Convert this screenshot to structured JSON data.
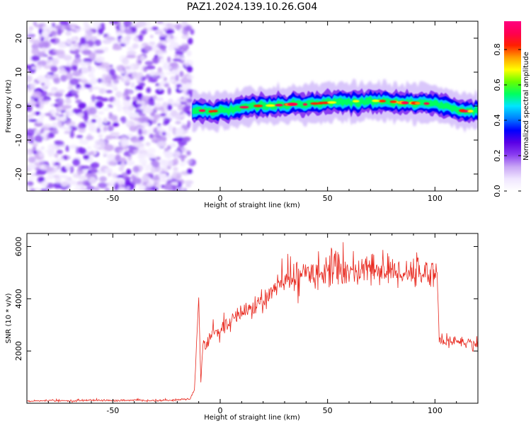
{
  "figure": {
    "title": "PAZ1.2024.139.10.26.G04"
  },
  "chart_data": [
    {
      "type": "heatmap",
      "title": "PAZ1.2024.139.10.26.G04",
      "xlabel": "Height of straight line (km)",
      "ylabel": "Frequency (Hz)",
      "xlim": [
        -90,
        120
      ],
      "ylim": [
        -25,
        25
      ],
      "xticks": [
        -50,
        0,
        50,
        100
      ],
      "xtick_labels": [
        "-50",
        "0",
        "50",
        "100"
      ],
      "yticks": [
        -20,
        -10,
        0,
        10,
        20
      ],
      "ytick_labels": [
        "-20",
        "-10",
        "0",
        "10",
        "20"
      ],
      "colorbar": {
        "label": "Normalized spectral amplitude",
        "range": [
          0,
          0.96
        ],
        "ticks": [
          0.0,
          0.2,
          0.4,
          0.6,
          0.8
        ],
        "tick_labels": [
          "0.0",
          "0.2",
          "0.4",
          "0.6",
          "0.8"
        ],
        "colors": [
          "#ffffff",
          "#f0e6ff",
          "#c9a6f5",
          "#8a3df0",
          "#5a00e6",
          "#0000ff",
          "#0080ff",
          "#00e5ff",
          "#00ff60",
          "#66ff00",
          "#ffff00",
          "#ffa000",
          "#ff2000",
          "#ff0050",
          "#ff0080"
        ]
      },
      "noise_region": {
        "x_from": -90,
        "x_to": -13,
        "level": "low"
      },
      "signal_ridge": {
        "x": [
          -13,
          -10,
          -5,
          0,
          5,
          10,
          15,
          20,
          25,
          30,
          35,
          40,
          45,
          50,
          55,
          60,
          65,
          70,
          75,
          80,
          85,
          90,
          95,
          100,
          105,
          110,
          115,
          120
        ],
        "frequency": [
          -1,
          -1.2,
          -1.6,
          -1.3,
          -0.9,
          -0.4,
          0,
          0.1,
          0.2,
          0.4,
          0.6,
          0.5,
          0.8,
          1.0,
          1.2,
          1.4,
          1.5,
          1.6,
          1.5,
          1.3,
          1.0,
          0.9,
          0.8,
          0.6,
          0,
          -1.0,
          -1.6,
          -1.2
        ]
      },
      "grid": false
    },
    {
      "type": "line",
      "xlabel": "Height of straight line (km)",
      "ylabel": "SNR (10 * v/v)",
      "xlim": [
        -90,
        120
      ],
      "ylim": [
        0,
        6500
      ],
      "xticks": [
        -50,
        0,
        50,
        100
      ],
      "xtick_labels": [
        "-50",
        "0",
        "50",
        "100"
      ],
      "yticks": [
        2000,
        4000,
        6000
      ],
      "ytick_labels": [
        "2000",
        "4000",
        "6000"
      ],
      "series": [
        {
          "color": "#e8281e",
          "x": [
            -90,
            -80,
            -70,
            -60,
            -50,
            -40,
            -30,
            -20,
            -14,
            -12,
            -10,
            -9,
            -8,
            -7,
            -5,
            0,
            5,
            10,
            15,
            20,
            25,
            30,
            35,
            40,
            45,
            50,
            55,
            60,
            65,
            70,
            75,
            80,
            85,
            90,
            95,
            100,
            101,
            102,
            105,
            110,
            115,
            120
          ],
          "values": [
            80,
            100,
            90,
            120,
            100,
            110,
            100,
            130,
            160,
            500,
            4050,
            800,
            2400,
            2000,
            2600,
            2700,
            3100,
            3500,
            3650,
            3900,
            4300,
            4700,
            4800,
            5000,
            5000,
            5200,
            5050,
            5100,
            5000,
            5100,
            5150,
            5000,
            5050,
            5000,
            5000,
            5000,
            5000,
            2500,
            2300,
            2400,
            2300,
            2250
          ],
          "noise_amplitude": [
            30,
            30,
            30,
            40,
            30,
            30,
            30,
            30,
            40,
            100,
            0,
            0,
            300,
            250,
            250,
            300,
            300,
            300,
            300,
            350,
            400,
            450,
            500,
            500,
            550,
            550,
            550,
            550,
            550,
            550,
            550,
            550,
            500,
            500,
            500,
            500,
            0,
            250,
            200,
            200,
            200,
            200
          ]
        }
      ],
      "grid": false
    }
  ]
}
